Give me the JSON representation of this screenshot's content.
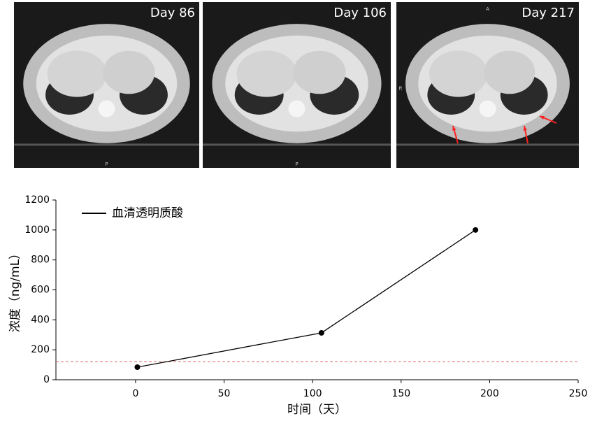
{
  "images": [
    {
      "label": "Day 86",
      "markers": [
        "P"
      ]
    },
    {
      "label": "Day 106",
      "markers": [
        "P"
      ]
    },
    {
      "label": "Day 217",
      "markers": [
        "A",
        "R"
      ]
    }
  ],
  "chart_data": {
    "type": "line",
    "xlabel": "时间（天）",
    "ylabel": "浓度（ng/mL）",
    "x": [
      1,
      105,
      192
    ],
    "series": [
      {
        "name": "血清透明质酸",
        "color": "#000000",
        "values": [
          84,
          313,
          1000
        ]
      }
    ],
    "xlim": [
      -45,
      250
    ],
    "xticks": [
      0,
      50,
      100,
      150,
      200,
      250
    ],
    "ylim": [
      0,
      1200
    ],
    "yticks": [
      0,
      200,
      400,
      600,
      800,
      1000,
      1200
    ],
    "reference_line": {
      "value": 121,
      "color": "#e06666"
    },
    "legend": "upper left",
    "grid": false
  }
}
